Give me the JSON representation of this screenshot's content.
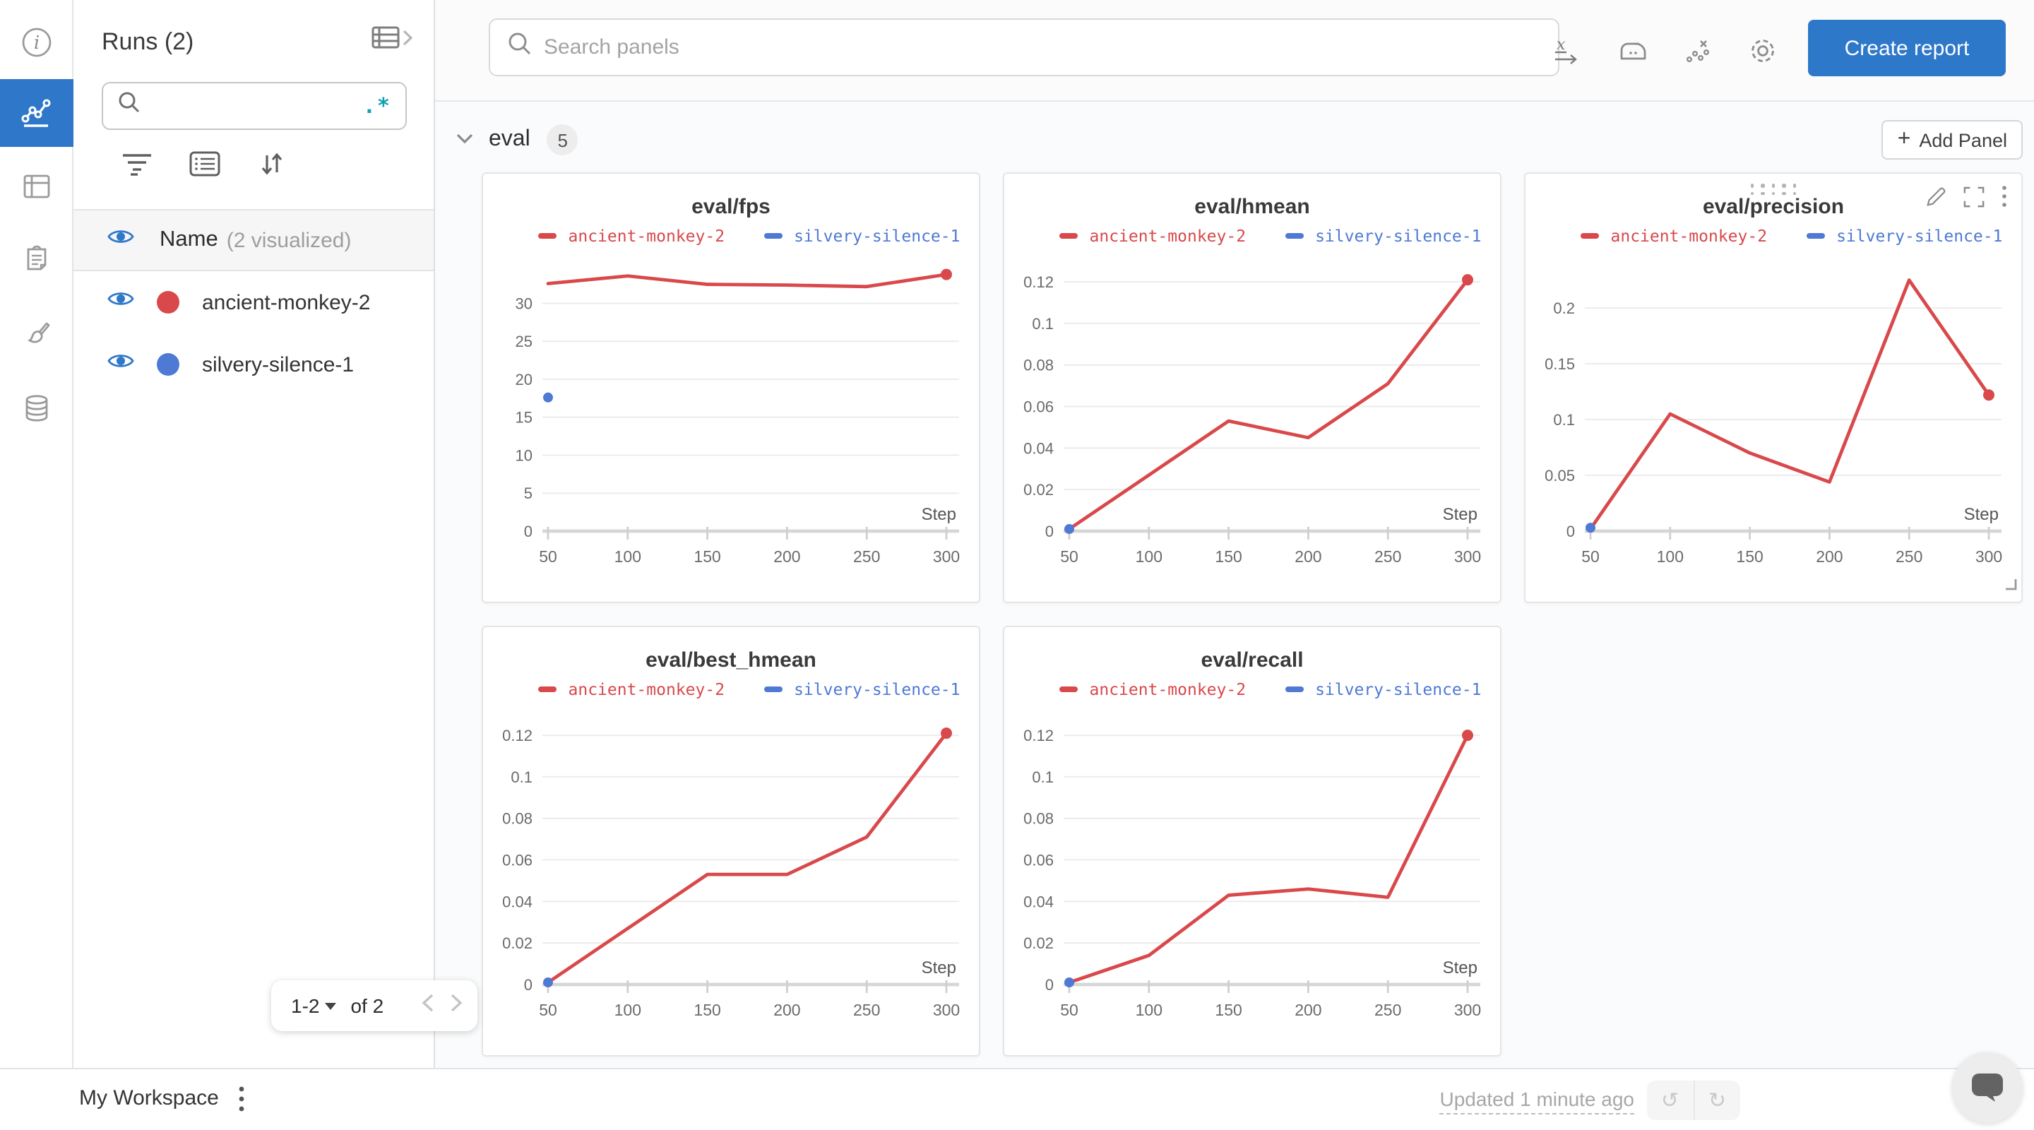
{
  "colors": {
    "accent_blue": "#2e78ca",
    "run_red": "#d9494b",
    "run_blue": "#4e79d4",
    "regex_teal": "#12a0b3"
  },
  "rail": {
    "items": [
      "info",
      "workspace-charts",
      "runs-table",
      "logs",
      "customize",
      "artifacts"
    ],
    "active": "workspace-charts"
  },
  "sidebar": {
    "title": "Runs (2)",
    "regex_label": ".*",
    "header": {
      "name": "Name",
      "visualized": "(2 visualized)"
    },
    "runs": [
      {
        "name": "ancient-monkey-2",
        "color": "#d9494b"
      },
      {
        "name": "silvery-silence-1",
        "color": "#4e79d4"
      }
    ],
    "pagination": {
      "range": "1-2",
      "of": "of 2"
    }
  },
  "header": {
    "search_placeholder": "Search panels",
    "create_report": "Create report"
  },
  "section": {
    "label": "eval",
    "count": "5",
    "add_panel": "Add Panel"
  },
  "footer": {
    "workspace": "My Workspace",
    "updated": "Updated 1 minute ago"
  },
  "chart_data": [
    {
      "type": "line",
      "title": "eval/fps",
      "xlabel": "Step",
      "xlim": [
        50,
        300
      ],
      "xticks": [
        50,
        100,
        150,
        200,
        250,
        300
      ],
      "ylim": [
        0,
        34.6
      ],
      "yticks": [
        0,
        5,
        10,
        15,
        20,
        25,
        30
      ],
      "ylabels": [
        "0",
        "5",
        "10",
        "15",
        "20",
        "25",
        "30"
      ],
      "grid": true,
      "legend_position": "top",
      "series": [
        {
          "name": "ancient-monkey-2",
          "color": "#d9484b",
          "type": "line",
          "marker_end": true,
          "points": [
            [
              50,
              32.6
            ],
            [
              100,
              33.6
            ],
            [
              150,
              32.5
            ],
            [
              200,
              32.4
            ],
            [
              250,
              32.2
            ],
            [
              300,
              33.8
            ]
          ]
        },
        {
          "name": "silvery-silence-1",
          "color": "#4e79d4",
          "type": "scatter",
          "points": [
            [
              50,
              17.6
            ]
          ]
        }
      ]
    },
    {
      "type": "line",
      "title": "eval/hmean",
      "xlabel": "Step",
      "xlim": [
        50,
        300
      ],
      "xticks": [
        50,
        100,
        150,
        200,
        250,
        300
      ],
      "ylim": [
        0,
        0.1265
      ],
      "yticks": [
        0,
        0.02,
        0.04,
        0.06,
        0.08,
        0.1,
        0.12
      ],
      "ylabels": [
        "0",
        "0.02",
        "0.04",
        "0.06",
        "0.08",
        "0.1",
        "0.12"
      ],
      "grid": true,
      "legend_position": "top",
      "series": [
        {
          "name": "ancient-monkey-2",
          "color": "#d9484b",
          "type": "line",
          "marker_end": true,
          "points": [
            [
              50,
              0.001
            ],
            [
              100,
              0.027
            ],
            [
              150,
              0.053
            ],
            [
              200,
              0.045
            ],
            [
              250,
              0.071
            ],
            [
              300,
              0.121
            ]
          ]
        },
        {
          "name": "silvery-silence-1",
          "color": "#4e79d4",
          "type": "scatter",
          "points": [
            [
              50,
              0.001
            ]
          ]
        }
      ]
    },
    {
      "type": "line",
      "title": "eval/precision",
      "xlabel": "Step",
      "hover_controls": true,
      "xlim": [
        50,
        300
      ],
      "xticks": [
        50,
        100,
        150,
        200,
        250,
        300
      ],
      "ylim": [
        0,
        0.2355
      ],
      "yticks": [
        0,
        0.05,
        0.1,
        0.15,
        0.2
      ],
      "ylabels": [
        "0",
        "0.05",
        "0.1",
        "0.15",
        "0.2"
      ],
      "grid": true,
      "legend_position": "top",
      "series": [
        {
          "name": "ancient-monkey-2",
          "color": "#d9484b",
          "type": "line",
          "marker_end": true,
          "points": [
            [
              50,
              0.002
            ],
            [
              100,
              0.105
            ],
            [
              150,
              0.07
            ],
            [
              200,
              0.044
            ],
            [
              250,
              0.225
            ],
            [
              300,
              0.122
            ]
          ]
        },
        {
          "name": "silvery-silence-1",
          "color": "#4e79d4",
          "type": "scatter",
          "points": [
            [
              50,
              0.003
            ]
          ]
        }
      ]
    },
    {
      "type": "line",
      "title": "eval/best_hmean",
      "xlabel": "Step",
      "xlim": [
        50,
        300
      ],
      "xticks": [
        50,
        100,
        150,
        200,
        250,
        300
      ],
      "ylim": [
        0,
        0.1265
      ],
      "yticks": [
        0,
        0.02,
        0.04,
        0.06,
        0.08,
        0.1,
        0.12
      ],
      "ylabels": [
        "0",
        "0.02",
        "0.04",
        "0.06",
        "0.08",
        "0.1",
        "0.12"
      ],
      "grid": true,
      "legend_position": "top",
      "series": [
        {
          "name": "ancient-monkey-2",
          "color": "#d9484b",
          "type": "line",
          "marker_end": true,
          "points": [
            [
              50,
              0.001
            ],
            [
              100,
              0.027
            ],
            [
              150,
              0.053
            ],
            [
              200,
              0.053
            ],
            [
              250,
              0.071
            ],
            [
              300,
              0.121
            ]
          ]
        },
        {
          "name": "silvery-silence-1",
          "color": "#4e79d4",
          "type": "scatter",
          "points": [
            [
              50,
              0.001
            ]
          ]
        }
      ]
    },
    {
      "type": "line",
      "title": "eval/recall",
      "xlabel": "Step",
      "xlim": [
        50,
        300
      ],
      "xticks": [
        50,
        100,
        150,
        200,
        250,
        300
      ],
      "ylim": [
        0,
        0.1265
      ],
      "yticks": [
        0,
        0.02,
        0.04,
        0.06,
        0.08,
        0.1,
        0.12
      ],
      "ylabels": [
        "0",
        "0.02",
        "0.04",
        "0.06",
        "0.08",
        "0.1",
        "0.12"
      ],
      "grid": true,
      "legend_position": "top",
      "series": [
        {
          "name": "ancient-monkey-2",
          "color": "#d9484b",
          "type": "line",
          "marker_end": true,
          "points": [
            [
              50,
              0.001
            ],
            [
              100,
              0.014
            ],
            [
              150,
              0.043
            ],
            [
              200,
              0.046
            ],
            [
              250,
              0.042
            ],
            [
              300,
              0.12
            ]
          ]
        },
        {
          "name": "silvery-silence-1",
          "color": "#4e79d4",
          "type": "scatter",
          "points": [
            [
              50,
              0.001
            ]
          ]
        }
      ]
    }
  ]
}
